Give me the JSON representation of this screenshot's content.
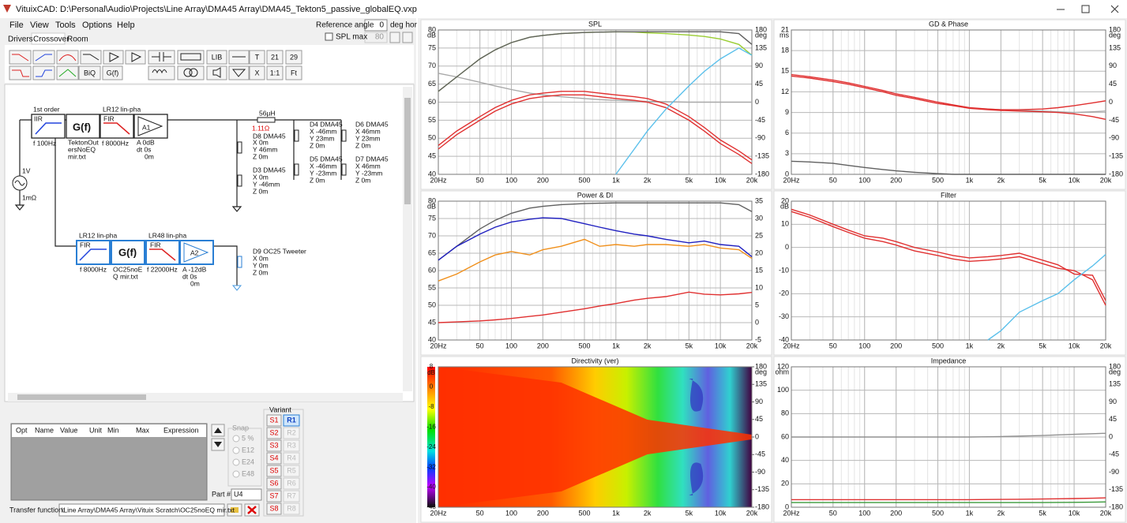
{
  "window": {
    "title": "VituixCAD: D:\\Personal\\Audio\\Projects\\Line Array\\DMA45 Array\\DMA45_Tekton5_passive_globalEQ.vxp"
  },
  "menu": [
    "File",
    "View",
    "Tools",
    "Options",
    "Help"
  ],
  "tabs": [
    "Drivers",
    "Crossover",
    "Room"
  ],
  "reference": {
    "label": "Reference angle",
    "value": "0",
    "unit": "deg hor",
    "spl_max_label": "SPL max",
    "spl_max_value": "80"
  },
  "toolbar": [
    "LIB",
    "T",
    "21",
    "29",
    "BiQ",
    "G(f)",
    "X",
    "1:1",
    "Ft"
  ],
  "schematic": {
    "labels": [
      "1st order",
      "IIR",
      "G(f)",
      "LR12 lin-pha",
      "FIR",
      "A1",
      "f  100Hz",
      "TektonOut",
      "ersNoEQ",
      "mir.txt",
      "f  8000Hz",
      "A  0dB",
      "dt 0s",
      "0m",
      "56µH",
      "1.11Ω",
      "D8 DMA45",
      "X 0m",
      "Y 46mm",
      "Z 0m",
      "D3 DMA45",
      "X 0m",
      "Y -46mm",
      "Z 0m",
      "D4 DMA45",
      "X -46mm",
      "Y 23mm",
      "Z 0m",
      "D5 DMA45",
      "X -46mm",
      "Y -23mm",
      "Z 0m",
      "D6 DMA45",
      "X 46mm",
      "Y 23mm",
      "Z 0m",
      "D7 DMA45",
      "X 46mm",
      "Y -23mm",
      "Z 0m",
      "1V",
      "1mΩ",
      "LR12 lin-pha",
      "LR48 lin-pha",
      "FIR",
      "G(f)",
      "FIR",
      "A2",
      "f  8000Hz",
      "OC25noE",
      "Q mir.txt",
      "f  22000Hz",
      "A  -12dB",
      "dt 0s",
      "0m",
      "D9 OC25 Tweeter",
      "X 0m",
      "Y 0m",
      "Z 0m"
    ]
  },
  "parameters": {
    "columns": [
      "Opt",
      "Name",
      "Value",
      "Unit",
      "Min",
      "Max",
      "Expression"
    ],
    "snap": {
      "title": "Snap",
      "options": [
        "5 %",
        "E12",
        "E24",
        "E48"
      ]
    },
    "part_label": "Part #",
    "part_value": "U4"
  },
  "variant": {
    "title": "Variant",
    "s": [
      "S1",
      "S2",
      "S3",
      "S4",
      "S5",
      "S6",
      "S7",
      "S8"
    ],
    "r": [
      "R1",
      "R2",
      "R3",
      "R4",
      "R5",
      "R6",
      "R7",
      "R8"
    ]
  },
  "transfer_function": {
    "label": "Transfer function:",
    "value": "\\Line Array\\DMA45 Array\\Vituix Scratch\\OC25noEQ mir.txt"
  },
  "chart_data": [
    {
      "type": "line",
      "title": "SPL",
      "y_unit": "dB",
      "y2_unit": "deg",
      "log_x": true,
      "grid": true,
      "x": [
        20,
        30,
        50,
        70,
        100,
        150,
        200,
        300,
        500,
        700,
        1000,
        1500,
        2000,
        3000,
        5000,
        7000,
        10000,
        15000,
        20000
      ],
      "xlim": [
        20,
        20000
      ],
      "xticks": [
        {
          "value": 20,
          "label": "20Hz"
        },
        50,
        100,
        200,
        500,
        {
          "value": 1000,
          "label": "1k"
        },
        {
          "value": 2000,
          "label": "2k"
        },
        {
          "value": 5000,
          "label": "5k"
        },
        {
          "value": 10000,
          "label": "10k"
        },
        {
          "value": 20000,
          "label": "20k"
        }
      ],
      "ylim": [
        40,
        80
      ],
      "yticks": [
        40,
        45,
        50,
        55,
        60,
        65,
        70,
        75,
        80
      ],
      "y2lim": [
        -180,
        180
      ],
      "y2ticks": [
        -180,
        -135,
        -90,
        -45,
        0,
        45,
        90,
        135,
        180
      ],
      "series": [
        {
          "color": "#a8a8a8",
          "values": [
            68,
            67,
            65.5,
            64.5,
            63.5,
            62.5,
            62,
            61.5,
            61,
            60.7,
            60.5,
            60.3,
            60.2,
            60.1,
            60,
            60,
            60,
            60,
            60
          ]
        },
        {
          "color": "#9acd32",
          "values": [
            63,
            67,
            72,
            74.5,
            76.5,
            78,
            78.5,
            79,
            79.3,
            79.4,
            79.5,
            79.4,
            79.2,
            79,
            78.6,
            78.2,
            77.5,
            76,
            73
          ]
        },
        {
          "color": "#606060",
          "values": [
            63,
            67,
            72,
            74.5,
            76.5,
            78,
            78.5,
            79,
            79.3,
            79.4,
            79.5,
            79.5,
            79.5,
            79.5,
            79.5,
            79.5,
            79.5,
            79,
            76
          ]
        },
        {
          "color": "#e03030",
          "values": [
            47,
            51,
            55,
            57.5,
            59.5,
            61,
            61.5,
            62,
            62,
            61.5,
            61,
            60.5,
            60,
            58.5,
            55,
            52,
            48.5,
            45.5,
            43
          ]
        },
        {
          "color": "#e03030",
          "values": [
            48,
            52,
            56,
            58.5,
            60.5,
            62,
            62.5,
            63,
            63,
            62.5,
            62,
            61.5,
            61,
            59.5,
            56,
            53,
            49.5,
            46.5,
            44
          ]
        },
        {
          "color": "#5bc0eb",
          "values": [
            null,
            null,
            null,
            null,
            null,
            null,
            null,
            null,
            null,
            null,
            40,
            47,
            52,
            58,
            64.5,
            68.5,
            72,
            75,
            73
          ]
        }
      ]
    },
    {
      "type": "line",
      "title": "GD & Phase",
      "y_unit": "ms",
      "y2_unit": "deg",
      "log_x": true,
      "grid": true,
      "x": [
        20,
        30,
        50,
        70,
        100,
        150,
        200,
        300,
        500,
        700,
        1000,
        1500,
        2000,
        3000,
        5000,
        7000,
        10000,
        15000,
        20000
      ],
      "xlim": [
        20,
        20000
      ],
      "xticks": [
        {
          "value": 20,
          "label": "20Hz"
        },
        50,
        100,
        200,
        500,
        {
          "value": 1000,
          "label": "1k"
        },
        {
          "value": 2000,
          "label": "2k"
        },
        {
          "value": 5000,
          "label": "5k"
        },
        {
          "value": 10000,
          "label": "10k"
        },
        {
          "value": 20000,
          "label": "20k"
        }
      ],
      "ylim": [
        0,
        21
      ],
      "yticks": [
        0,
        3,
        6,
        9,
        12,
        15,
        18,
        21
      ],
      "y2lim": [
        -180,
        180
      ],
      "y2ticks": [
        -180,
        -135,
        -90,
        -45,
        0,
        45,
        90,
        135,
        180
      ],
      "series": [
        {
          "color": "#a8a8a8",
          "values": [
            null,
            null,
            null,
            null,
            null,
            null,
            null,
            null,
            null,
            null,
            9.6,
            9.5,
            9.4,
            9.3,
            9.2,
            9.1,
            9,
            9.1,
            9.2
          ]
        },
        {
          "color": "#606060",
          "values": [
            1.9,
            1.8,
            1.6,
            1.3,
            1,
            0.7,
            0.5,
            0.3,
            0.1,
            0,
            0,
            0,
            0,
            0,
            0,
            0,
            0,
            0,
            0
          ]
        },
        {
          "color": "#e03030",
          "values": [
            14.3,
            14,
            13.5,
            13.1,
            12.6,
            12,
            11.5,
            11,
            10.3,
            10,
            9.6,
            9.4,
            9.3,
            9.2,
            9.1,
            9,
            8.8,
            8.4,
            8
          ]
        },
        {
          "color": "#e03030",
          "values": [
            14.5,
            14.2,
            13.7,
            13.3,
            12.8,
            12.2,
            11.7,
            11.2,
            10.5,
            10.1,
            9.7,
            9.5,
            9.4,
            9.4,
            9.5,
            9.7,
            10,
            10.4,
            10.7
          ]
        }
      ]
    },
    {
      "type": "line",
      "title": "Power & DI",
      "y_unit": "dB",
      "log_x": true,
      "grid": true,
      "x": [
        20,
        30,
        50,
        70,
        100,
        150,
        200,
        300,
        500,
        700,
        1000,
        1500,
        2000,
        3000,
        5000,
        7000,
        10000,
        15000,
        20000
      ],
      "xlim": [
        20,
        20000
      ],
      "xticks": [
        {
          "value": 20,
          "label": "20Hz"
        },
        50,
        100,
        200,
        500,
        {
          "value": 1000,
          "label": "1k"
        },
        {
          "value": 2000,
          "label": "2k"
        },
        {
          "value": 5000,
          "label": "5k"
        },
        {
          "value": 10000,
          "label": "10k"
        },
        {
          "value": 20000,
          "label": "20k"
        }
      ],
      "ylim": [
        40,
        80
      ],
      "yticks": [
        40,
        45,
        50,
        55,
        60,
        65,
        70,
        75,
        80
      ],
      "y2lim": [
        -5,
        35
      ],
      "y2ticks": [
        -5,
        0,
        5,
        10,
        15,
        20,
        25,
        30,
        35
      ],
      "series": [
        {
          "color": "#606060",
          "values": [
            63,
            67,
            72,
            74.5,
            76.5,
            78,
            78.5,
            79,
            79.3,
            79.4,
            79.5,
            79.5,
            79.5,
            79.5,
            79.5,
            79.5,
            79.5,
            79,
            77
          ]
        },
        {
          "color": "#2020c0",
          "values": [
            63,
            67,
            70.5,
            72.5,
            74,
            74.8,
            75.2,
            75,
            73.5,
            72.5,
            71.5,
            70.5,
            70,
            69,
            68,
            68.5,
            67.5,
            67,
            64
          ]
        },
        {
          "color": "#f0901c",
          "axis": "y2",
          "values": [
            12,
            14,
            17.5,
            19.5,
            20.5,
            19.5,
            21,
            22,
            24,
            22,
            22.5,
            22,
            22.5,
            22.5,
            22,
            22.5,
            21.5,
            21,
            18.5
          ]
        },
        {
          "color": "#e03030",
          "axis": "y2",
          "values": [
            0,
            0.2,
            0.5,
            0.8,
            1.2,
            1.8,
            2.2,
            3,
            4,
            4.8,
            5.5,
            6.5,
            7,
            7.5,
            8.8,
            8.2,
            8,
            8.3,
            8.7
          ]
        }
      ]
    },
    {
      "type": "line",
      "title": "Filter",
      "y_unit": "dB",
      "log_x": true,
      "grid": true,
      "x": [
        20,
        30,
        50,
        70,
        100,
        150,
        200,
        300,
        500,
        700,
        1000,
        1500,
        2000,
        3000,
        5000,
        7000,
        10000,
        15000,
        20000
      ],
      "xlim": [
        20,
        20000
      ],
      "xticks": [
        {
          "value": 20,
          "label": "20Hz"
        },
        50,
        100,
        200,
        500,
        {
          "value": 1000,
          "label": "1k"
        },
        {
          "value": 2000,
          "label": "2k"
        },
        {
          "value": 5000,
          "label": "5k"
        },
        {
          "value": 10000,
          "label": "10k"
        },
        {
          "value": 20000,
          "label": "20k"
        }
      ],
      "ylim": [
        -40,
        20
      ],
      "yticks": [
        -40,
        -30,
        -20,
        -10,
        0,
        10,
        20
      ],
      "series": [
        {
          "color": "#e03030",
          "values": [
            15.5,
            13,
            9,
            6.5,
            4,
            2.5,
            1,
            -1.5,
            -3.5,
            -5,
            -6,
            -5.5,
            -5,
            -4,
            -7,
            -9,
            -10,
            -14,
            -25
          ]
        },
        {
          "color": "#e03030",
          "values": [
            16.5,
            14,
            10,
            7.5,
            5,
            4,
            2.5,
            0,
            -2,
            -3.5,
            -4.5,
            -4,
            -3.5,
            -2.5,
            -5.5,
            -7.5,
            -11.5,
            -12,
            -23
          ]
        },
        {
          "color": "#5bc0eb",
          "values": [
            null,
            null,
            null,
            null,
            null,
            null,
            null,
            null,
            null,
            null,
            null,
            -40,
            -36,
            -28,
            -23,
            -20,
            -14,
            -8,
            -3
          ]
        }
      ]
    },
    {
      "type": "heatmap",
      "title": "Directivity (ver)",
      "log_x": true,
      "xlim": [
        20,
        20000
      ],
      "xticks": [
        {
          "value": 20,
          "label": "20Hz"
        },
        50,
        100,
        200,
        500,
        {
          "value": 1000,
          "label": "1k"
        },
        {
          "value": 2000,
          "label": "2k"
        },
        {
          "value": 5000,
          "label": "5k"
        },
        {
          "value": 10000,
          "label": "10k"
        },
        {
          "value": 20000,
          "label": "20k"
        }
      ],
      "y2_unit": "deg",
      "y2lim": [
        -180,
        180
      ],
      "y2ticks": [
        -180,
        -135,
        -90,
        -45,
        0,
        45,
        90,
        135,
        180
      ],
      "colorbar": {
        "unit": "dB",
        "lim": [
          -48,
          8
        ],
        "ticks": [
          8,
          0,
          -8,
          -16,
          -24,
          -32,
          -40,
          -48
        ]
      }
    },
    {
      "type": "line",
      "title": "Impedance",
      "y_unit": "ohm",
      "y2_unit": "deg",
      "log_x": true,
      "grid": true,
      "x": [
        20,
        30,
        50,
        70,
        100,
        150,
        200,
        300,
        500,
        700,
        1000,
        1500,
        2000,
        3000,
        5000,
        7000,
        10000,
        15000,
        20000
      ],
      "xlim": [
        20,
        20000
      ],
      "xticks": [
        {
          "value": 20,
          "label": "20Hz"
        },
        50,
        100,
        200,
        500,
        {
          "value": 1000,
          "label": "1k"
        },
        {
          "value": 2000,
          "label": "2k"
        },
        {
          "value": 5000,
          "label": "5k"
        },
        {
          "value": 10000,
          "label": "10k"
        },
        {
          "value": 20000,
          "label": "20k"
        }
      ],
      "ylim": [
        0,
        120
      ],
      "yticks": [
        0,
        20,
        40,
        60,
        80,
        100,
        120
      ],
      "y2lim": [
        -180,
        180
      ],
      "y2ticks": [
        -180,
        -135,
        -90,
        -45,
        0,
        45,
        90,
        135,
        180
      ],
      "series": [
        {
          "color": "#909090",
          "values": [
            60,
            60,
            60,
            60,
            60,
            60,
            60,
            60,
            60,
            60,
            60,
            60.2,
            60.4,
            60.8,
            61.3,
            61.8,
            62.3,
            62.8,
            63.2
          ]
        },
        {
          "color": "#e03030",
          "values": [
            6.5,
            6.5,
            6.5,
            6.5,
            6.5,
            6.5,
            6.5,
            6.5,
            6.5,
            6.5,
            6.5,
            6.6,
            6.7,
            6.8,
            7,
            7.2,
            7.4,
            7.7,
            8
          ]
        },
        {
          "color": "#3a9a3a",
          "values": [
            4,
            4,
            4,
            4,
            4,
            4,
            4,
            4,
            4,
            4,
            4,
            4,
            4,
            4,
            4,
            4.1,
            4.2,
            4.3,
            4.5
          ]
        }
      ]
    }
  ]
}
